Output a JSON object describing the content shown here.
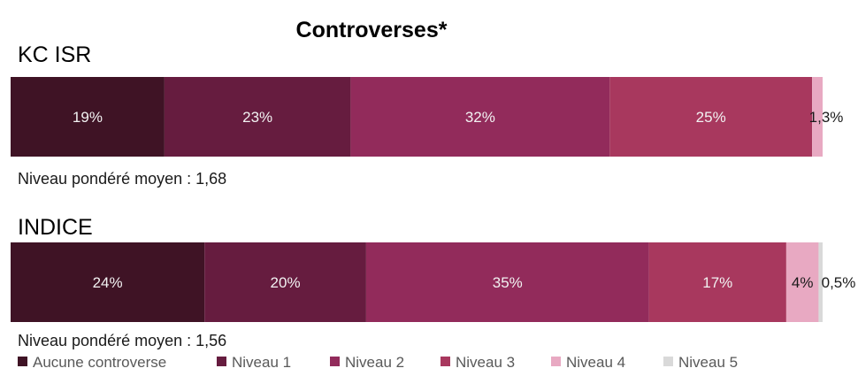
{
  "chart_data": {
    "type": "bar",
    "orientation": "horizontal",
    "stacked": true,
    "title": "Controverses*",
    "legend": {
      "placement": "bottom",
      "entries": [
        "Aucune controverse",
        "Niveau 1",
        "Niveau 2",
        "Niveau 3",
        "Niveau 4",
        "Niveau 5"
      ]
    },
    "colors": [
      "#3f1325",
      "#661c3f",
      "#922b5b",
      "#a8385e",
      "#e8a9c2",
      "#d9d9d9"
    ],
    "groups": [
      {
        "name": "KC ISR",
        "values": [
          19,
          23,
          32,
          25,
          1.3,
          0
        ],
        "labels": [
          "19%",
          "23%",
          "32%",
          "25%",
          "1,3%",
          ""
        ],
        "average_text": "Niveau pondéré moyen : 1,68"
      },
      {
        "name": "INDICE",
        "values": [
          24,
          20,
          35,
          17,
          4,
          0.5
        ],
        "labels": [
          "24%",
          "20%",
          "35%",
          "17%",
          "4%",
          "0,5%"
        ],
        "average_text": "Niveau pondéré moyen : 1,56"
      }
    ]
  }
}
